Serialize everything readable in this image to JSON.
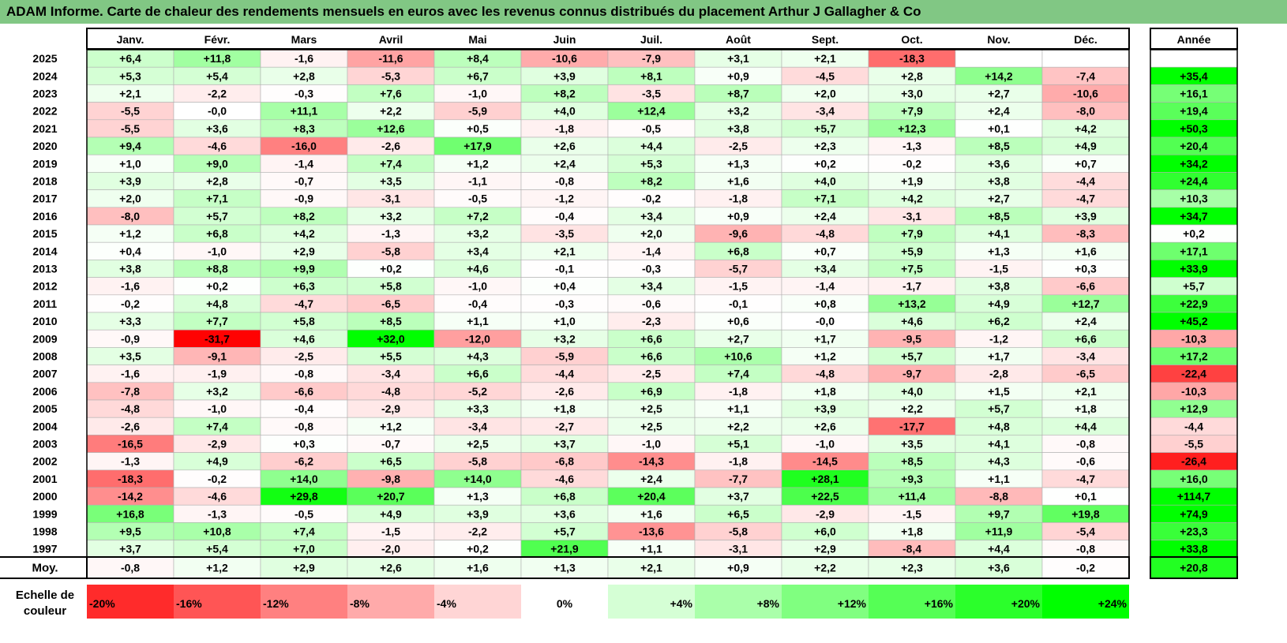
{
  "title": "ADAM Informe. Carte de chaleur des rendements mensuels en euros avec les revenus connus distribués du placement Arthur J Gallagher & Co",
  "chart_data": {
    "type": "heatmap",
    "title": "ADAM Informe. Carte de chaleur des rendements mensuels en euros avec les revenus connus distribués du placement Arthur J Gallagher & Co",
    "columns": [
      "Janv.",
      "Févr.",
      "Mars",
      "Avril",
      "Mai",
      "Juin",
      "Juil.",
      "Août",
      "Sept.",
      "Oct.",
      "Nov.",
      "Déc."
    ],
    "year_header": "Année",
    "rows": [
      {
        "year": "2025",
        "values": [
          "+6,4",
          "+11,8",
          "-1,6",
          "-11,6",
          "+8,4",
          "-10,6",
          "-7,9",
          "+3,1",
          "+2,1",
          "-18,3",
          "",
          ""
        ],
        "annual": ""
      },
      {
        "year": "2024",
        "values": [
          "+5,3",
          "+5,4",
          "+2,8",
          "-5,3",
          "+6,7",
          "+3,9",
          "+8,1",
          "+0,9",
          "-4,5",
          "+2,8",
          "+14,2",
          "-7,4"
        ],
        "annual": "+35,4"
      },
      {
        "year": "2023",
        "values": [
          "+2,1",
          "-2,2",
          "-0,3",
          "+7,6",
          "-1,0",
          "+8,2",
          "-3,5",
          "+8,7",
          "+2,0",
          "+3,0",
          "+2,7",
          "-10,6"
        ],
        "annual": "+16,1"
      },
      {
        "year": "2022",
        "values": [
          "-5,5",
          "-0,0",
          "+11,1",
          "+2,2",
          "-5,9",
          "+4,0",
          "+12,4",
          "+3,2",
          "-3,4",
          "+7,9",
          "+2,4",
          "-8,0"
        ],
        "annual": "+19,4"
      },
      {
        "year": "2021",
        "values": [
          "-5,5",
          "+3,6",
          "+8,3",
          "+12,6",
          "+0,5",
          "-1,8",
          "-0,5",
          "+3,8",
          "+5,7",
          "+12,3",
          "+0,1",
          "+4,2"
        ],
        "annual": "+50,3"
      },
      {
        "year": "2020",
        "values": [
          "+9,4",
          "-4,6",
          "-16,0",
          "-2,6",
          "+17,9",
          "+2,6",
          "+4,4",
          "-2,5",
          "+2,3",
          "-1,3",
          "+8,5",
          "+4,9"
        ],
        "annual": "+20,4"
      },
      {
        "year": "2019",
        "values": [
          "+1,0",
          "+9,0",
          "-1,4",
          "+7,4",
          "+1,2",
          "+2,4",
          "+5,3",
          "+1,3",
          "+0,2",
          "-0,2",
          "+3,6",
          "+0,7"
        ],
        "annual": "+34,2"
      },
      {
        "year": "2018",
        "values": [
          "+3,9",
          "+2,8",
          "-0,7",
          "+3,5",
          "-1,1",
          "-0,8",
          "+8,2",
          "+1,6",
          "+4,0",
          "+1,9",
          "+3,8",
          "-4,4"
        ],
        "annual": "+24,4"
      },
      {
        "year": "2017",
        "values": [
          "+2,0",
          "+7,1",
          "-0,9",
          "-3,1",
          "-0,5",
          "-1,2",
          "-0,2",
          "-1,8",
          "+7,1",
          "+4,2",
          "+2,7",
          "-4,7"
        ],
        "annual": "+10,3"
      },
      {
        "year": "2016",
        "values": [
          "-8,0",
          "+5,7",
          "+8,2",
          "+3,2",
          "+7,2",
          "-0,4",
          "+3,4",
          "+0,9",
          "+2,4",
          "-3,1",
          "+8,5",
          "+3,9"
        ],
        "annual": "+34,7"
      },
      {
        "year": "2015",
        "values": [
          "+1,2",
          "+6,8",
          "+4,2",
          "-1,3",
          "+3,2",
          "-3,5",
          "+2,0",
          "-9,6",
          "-4,8",
          "+7,9",
          "+4,1",
          "-8,3"
        ],
        "annual": "+0,2"
      },
      {
        "year": "2014",
        "values": [
          "+0,4",
          "-1,0",
          "+2,9",
          "-5,8",
          "+3,4",
          "+2,1",
          "-1,4",
          "+6,8",
          "+0,7",
          "+5,9",
          "+1,3",
          "+1,6"
        ],
        "annual": "+17,1"
      },
      {
        "year": "2013",
        "values": [
          "+3,8",
          "+8,8",
          "+9,9",
          "+0,2",
          "+4,6",
          "-0,1",
          "-0,3",
          "-5,7",
          "+3,4",
          "+7,5",
          "-1,5",
          "+0,3"
        ],
        "annual": "+33,9"
      },
      {
        "year": "2012",
        "values": [
          "-1,6",
          "+0,2",
          "+6,3",
          "+5,8",
          "-1,0",
          "+0,4",
          "+3,4",
          "-1,5",
          "-1,4",
          "-1,7",
          "+3,8",
          "-6,6"
        ],
        "annual": "+5,7"
      },
      {
        "year": "2011",
        "values": [
          "-0,2",
          "+4,8",
          "-4,7",
          "-6,5",
          "-0,4",
          "-0,3",
          "-0,6",
          "-0,1",
          "+0,8",
          "+13,2",
          "+4,9",
          "+12,7"
        ],
        "annual": "+22,9"
      },
      {
        "year": "2010",
        "values": [
          "+3,3",
          "+7,7",
          "+5,8",
          "+8,5",
          "+1,1",
          "+1,0",
          "-2,3",
          "+0,6",
          "-0,0",
          "+4,6",
          "+6,2",
          "+2,4"
        ],
        "annual": "+45,2"
      },
      {
        "year": "2009",
        "values": [
          "-0,9",
          "-31,7",
          "+4,6",
          "+32,0",
          "-12,0",
          "+3,2",
          "+6,6",
          "+2,7",
          "+1,7",
          "-9,5",
          "-1,2",
          "+6,6"
        ],
        "annual": "-10,3"
      },
      {
        "year": "2008",
        "values": [
          "+3,5",
          "-9,1",
          "-2,5",
          "+5,5",
          "+4,3",
          "-5,9",
          "+6,6",
          "+10,6",
          "+1,2",
          "+5,7",
          "+1,7",
          "-3,4"
        ],
        "annual": "+17,2"
      },
      {
        "year": "2007",
        "values": [
          "-1,6",
          "-1,9",
          "-0,8",
          "-3,4",
          "+6,6",
          "-4,4",
          "-2,5",
          "+7,4",
          "-4,8",
          "-9,7",
          "-2,8",
          "-6,5"
        ],
        "annual": "-22,4"
      },
      {
        "year": "2006",
        "values": [
          "-7,8",
          "+3,2",
          "-6,6",
          "-4,8",
          "-5,2",
          "-2,6",
          "+6,9",
          "-1,8",
          "+1,8",
          "+4,0",
          "+1,5",
          "+2,1"
        ],
        "annual": "-10,3"
      },
      {
        "year": "2005",
        "values": [
          "-4,8",
          "-1,0",
          "-0,4",
          "-2,9",
          "+3,3",
          "+1,8",
          "+2,5",
          "+1,1",
          "+3,9",
          "+2,2",
          "+5,7",
          "+1,8"
        ],
        "annual": "+12,9"
      },
      {
        "year": "2004",
        "values": [
          "-2,6",
          "+7,4",
          "-0,8",
          "+1,2",
          "-3,4",
          "-2,7",
          "+2,5",
          "+2,2",
          "+2,6",
          "-17,7",
          "+4,8",
          "+4,4"
        ],
        "annual": "-4,4"
      },
      {
        "year": "2003",
        "values": [
          "-16,5",
          "-2,9",
          "+0,3",
          "-0,7",
          "+2,5",
          "+3,7",
          "-1,0",
          "+5,1",
          "-1,0",
          "+3,5",
          "+4,1",
          "-0,8"
        ],
        "annual": "-5,5"
      },
      {
        "year": "2002",
        "values": [
          "-1,3",
          "+4,9",
          "-6,2",
          "+6,5",
          "-5,8",
          "-6,8",
          "-14,3",
          "-1,8",
          "-14,5",
          "+8,5",
          "+4,3",
          "-0,6"
        ],
        "annual": "-26,4"
      },
      {
        "year": "2001",
        "values": [
          "-18,3",
          "-0,2",
          "+14,0",
          "-9,8",
          "+14,0",
          "-4,6",
          "+2,4",
          "-7,7",
          "+28,1",
          "+9,3",
          "+1,1",
          "-4,7"
        ],
        "annual": "+16,0"
      },
      {
        "year": "2000",
        "values": [
          "-14,2",
          "-4,6",
          "+29,8",
          "+20,7",
          "+1,3",
          "+6,8",
          "+20,4",
          "+3,7",
          "+22,5",
          "+11,4",
          "-8,8",
          "+0,1"
        ],
        "annual": "+114,7"
      },
      {
        "year": "1999",
        "values": [
          "+16,8",
          "-1,3",
          "-0,5",
          "+4,9",
          "+3,9",
          "+3,6",
          "+1,6",
          "+6,5",
          "-2,9",
          "-1,5",
          "+9,7",
          "+19,8"
        ],
        "annual": "+74,9"
      },
      {
        "year": "1998",
        "values": [
          "+9,5",
          "+10,8",
          "+7,4",
          "-1,5",
          "-2,2",
          "+5,7",
          "-13,6",
          "-5,8",
          "+6,0",
          "+1,8",
          "+11,9",
          "-5,4"
        ],
        "annual": "+23,3"
      },
      {
        "year": "1997",
        "values": [
          "+3,7",
          "+5,4",
          "+7,0",
          "-2,0",
          "+0,2",
          "+21,9",
          "+1,1",
          "-3,1",
          "+2,9",
          "-8,4",
          "+4,4",
          "-0,8"
        ],
        "annual": "+33,8"
      }
    ],
    "average": {
      "label": "Moy.",
      "values": [
        "-0,8",
        "+1,2",
        "+2,9",
        "+2,6",
        "+1,6",
        "+1,3",
        "+2,1",
        "+0,9",
        "+2,2",
        "+2,3",
        "+3,6",
        "-0,2"
      ],
      "annual": "+20,8"
    },
    "scale": {
      "label_line1": "Echelle de",
      "label_line2": "couleur",
      "steps": [
        "-20%",
        "-16%",
        "-12%",
        "-8%",
        "-4%",
        "0%",
        "+4%",
        "+8%",
        "+12%",
        "+16%",
        "+20%",
        "+24%"
      ]
    },
    "colors": {
      "title_bg": "#81c784",
      "strong_red": "#ff0000",
      "strong_green": "#00ff00",
      "neutral": "#ffffff"
    }
  }
}
